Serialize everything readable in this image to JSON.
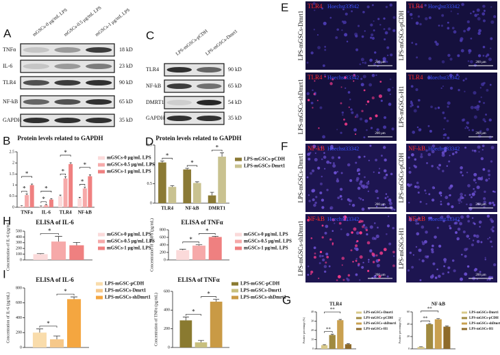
{
  "panel_labels": [
    "A",
    "B",
    "C",
    "D",
    "E",
    "F",
    "G",
    "H",
    "I"
  ],
  "blots": [
    {
      "lanes": [
        "mGSCs-0 μg/mL LPS",
        "mGSCs-0.5 μg/mL LPS",
        "mGSCs-1 μg/mL LPS"
      ],
      "rows": [
        {
          "name": "TNFα",
          "size": "18 kD"
        },
        {
          "name": "IL-6",
          "size": "23 kD"
        },
        {
          "name": "TLR4",
          "size": "90 kD"
        },
        {
          "name": "NF-kB",
          "size": "65 kD"
        },
        {
          "name": "GAPDH",
          "size": "35 kD"
        }
      ]
    },
    {
      "lanes": [
        "LPS-mGSCs-pCDH",
        "LPS-mGSCs-Dmrt1"
      ],
      "rows": [
        {
          "name": "TLR4",
          "size": "90 kD"
        },
        {
          "name": "NF-kB",
          "size": "65 kD"
        },
        {
          "name": "DMRT1",
          "size": "54 kD"
        },
        {
          "name": "GAPDH",
          "size": "35 kD"
        }
      ]
    }
  ],
  "micrographs": [
    {
      "marker": "TLR4",
      "stain": "Hoechst33342",
      "scale_bar": "200 μm",
      "images": [
        "LPS-mGSCs-Dmrt1",
        "LPS-mGSCs-pCDH",
        "LPS-mGSCs-shDmrt1",
        "LPS-mGSCs-H1"
      ]
    },
    {
      "marker": "NF-kB",
      "stain": "Hoechst33342",
      "scale_bar": "200 μm",
      "images": [
        "LPS-mGSCs-Dmrt1",
        "LPS-mGSCs-pCDH",
        "LPS-mGSCs-shDmrt1",
        "LPS-mGSCs-H1"
      ]
    }
  ],
  "chart_data": [
    {
      "type": "bar",
      "title": "Protein levels related to GAPDH",
      "categories": [
        "TNFa",
        "IL-6",
        "TLR4",
        "NF-kB"
      ],
      "series": [
        {
          "name": "mGSCs-0 μg/mL LPS",
          "color": "#fbdada",
          "values": [
            0.05,
            0.04,
            0.5,
            0.4
          ],
          "errors": [
            0.02,
            0.02,
            0.05,
            0.05
          ]
        },
        {
          "name": "mGSCs-0.5 μg/mL LPS",
          "color": "#f6a9a9",
          "values": [
            0.55,
            0.1,
            1.3,
            0.85
          ],
          "errors": [
            0.05,
            0.03,
            0.08,
            0.06
          ]
        },
        {
          "name": "mGSCs-1 μg/mL LPS",
          "color": "#ef8080",
          "values": [
            1.0,
            0.35,
            1.95,
            1.4
          ],
          "errors": [
            0.05,
            0.04,
            0.06,
            0.06
          ]
        }
      ],
      "ylim": [
        0,
        2.5
      ],
      "yticks": [
        0,
        0.5,
        1,
        1.5,
        2,
        2.5
      ],
      "significance": [
        "*",
        "*",
        "*",
        "*",
        "*",
        "*",
        "*",
        "*"
      ]
    },
    {
      "type": "bar",
      "title": "Protein levels related to GAPDH",
      "categories": [
        "TLR4",
        "NF-kB",
        "DMRT1"
      ],
      "series": [
        {
          "name": "LPS-mGSCs-pCDH",
          "color": "#8b7a35",
          "values": [
            1.05,
            0.87,
            0.2
          ],
          "errors": [
            0.04,
            0.03,
            0.08
          ]
        },
        {
          "name": "LPS-mGSCs-Dmrt1",
          "color": "#c9c290",
          "values": [
            0.42,
            0.52,
            1.2
          ],
          "errors": [
            0.03,
            0.03,
            0.1
          ]
        }
      ],
      "ylim": [
        0,
        1.5
      ],
      "yticks": [
        0,
        0.5,
        1,
        1.5
      ],
      "significance": [
        "*",
        "*",
        "*"
      ]
    },
    {
      "type": "bar",
      "title": "ELISA of IL-6",
      "ylabel": "Concentration of IL-6 (pg/mL)",
      "categories": [
        null
      ],
      "series": [
        {
          "name": "mGSCs-0 μg/mL LPS",
          "color": "#fbdada",
          "values": [
            100
          ],
          "errors": [
            10
          ]
        },
        {
          "name": "mGSCs-0.5 μg/mL LPS",
          "color": "#f6a9a9",
          "values": [
            320
          ],
          "errors": [
            90
          ]
        },
        {
          "name": "mGSCs-1 μg/mL LPS",
          "color": "#ef8080",
          "values": [
            255
          ],
          "errors": [
            50
          ]
        }
      ],
      "ylim": [
        0,
        500
      ],
      "yticks": [
        0,
        100,
        200,
        300,
        400,
        500
      ],
      "significance": [
        "*"
      ]
    },
    {
      "type": "bar",
      "title": "ELISA of TNFα",
      "ylabel": "Concentration of TNFα (pg/mL)",
      "categories": [
        null
      ],
      "series": [
        {
          "name": "mGSCs-0 μg/mL LPS",
          "color": "#fbdada",
          "values": [
            260
          ],
          "errors": [
            25
          ]
        },
        {
          "name": "mGSCs-0.5 μg/mL LPS",
          "color": "#f6a9a9",
          "values": [
            380
          ],
          "errors": [
            25
          ]
        },
        {
          "name": "mGSCs-1 μg/mL LPS",
          "color": "#ef8080",
          "values": [
            610
          ],
          "errors": [
            20
          ]
        }
      ],
      "ylim": [
        0,
        800
      ],
      "yticks": [
        0,
        200,
        400,
        600,
        800
      ],
      "significance": [
        "*",
        "*"
      ]
    },
    {
      "type": "bar",
      "title": "ELISA of IL-6",
      "ylabel": "Concentration of IL-6 (pg/mL)",
      "categories": [
        null
      ],
      "series": [
        {
          "name": "LPS-mGSC-pCDH",
          "color": "#f9dcab",
          "values": [
            200
          ],
          "errors": [
            50
          ]
        },
        {
          "name": "LPS-mGSCs-Dmrt1",
          "color": "#f6c88a",
          "values": [
            110
          ],
          "errors": [
            45
          ]
        },
        {
          "name": "LPS-mGSCs-shDmrt1",
          "color": "#f4a640",
          "values": [
            650
          ],
          "errors": [
            30
          ]
        }
      ],
      "ylim": [
        0,
        800
      ],
      "yticks": [
        0,
        200,
        400,
        600,
        800
      ],
      "significance": [
        "*",
        "*"
      ]
    },
    {
      "type": "bar",
      "title": "ELISA of TNFα",
      "ylabel": "Concentration of TNFα (pg/mL)",
      "categories": [
        null
      ],
      "series": [
        {
          "name": "LPS-mGSC-pCDH",
          "color": "#8a7a30",
          "values": [
            290
          ],
          "errors": [
            35
          ]
        },
        {
          "name": "LPS-mGSCs-Dmrt1",
          "color": "#c8bf7e",
          "values": [
            55
          ],
          "errors": [
            20
          ]
        },
        {
          "name": "LPS-mGSCs-shDmrt1",
          "color": "#c99a45",
          "values": [
            490
          ],
          "errors": [
            25
          ]
        }
      ],
      "ylim": [
        0,
        600
      ],
      "yticks": [
        0,
        200,
        400,
        600
      ],
      "significance": [
        "*",
        "*"
      ]
    },
    {
      "type": "bar",
      "title": "TLR4",
      "ylabel": "Positive percentage (%)",
      "categories": [
        null
      ],
      "series": [
        {
          "name": "LPS-mGSCs-Dmrt1",
          "color": "#d8c98a",
          "values": [
            4
          ],
          "errors": [
            0.5
          ]
        },
        {
          "name": "LPS-mGSCs-pCDH",
          "color": "#a08a40",
          "values": [
            15
          ],
          "errors": [
            0.8
          ]
        },
        {
          "name": "LPS-mGSCs-shDmrt1",
          "color": "#c9a050",
          "values": [
            31
          ],
          "errors": [
            0.8
          ]
        },
        {
          "name": "LPS-mGSCs-H1",
          "color": "#8e6a2a",
          "values": [
            5
          ],
          "errors": [
            0.5
          ]
        }
      ],
      "ylim": [
        0,
        40
      ],
      "yticks": [
        0,
        10,
        20,
        30,
        40
      ],
      "significance": [
        "**",
        "**"
      ]
    },
    {
      "type": "bar",
      "title": "NF-kB",
      "ylabel": "Positive percentage (%)",
      "categories": [
        null
      ],
      "series": [
        {
          "name": "LPS-mGSCs-Dmrt1",
          "color": "#d8c98a",
          "values": [
            3
          ],
          "errors": [
            0.5
          ]
        },
        {
          "name": "LPS-mGSCs-pCDH",
          "color": "#a08a40",
          "values": [
            40
          ],
          "errors": [
            1
          ]
        },
        {
          "name": "LPS-mGSCs-shDmrt1",
          "color": "#c9a050",
          "values": [
            48
          ],
          "errors": [
            1.2
          ]
        },
        {
          "name": "LPS-mGSCs-H1",
          "color": "#8e6a2a",
          "values": [
            36
          ],
          "errors": [
            1
          ]
        }
      ],
      "ylim": [
        0,
        60
      ],
      "yticks": [
        0,
        20,
        40,
        60
      ],
      "significance": [
        "**",
        "**"
      ]
    }
  ]
}
